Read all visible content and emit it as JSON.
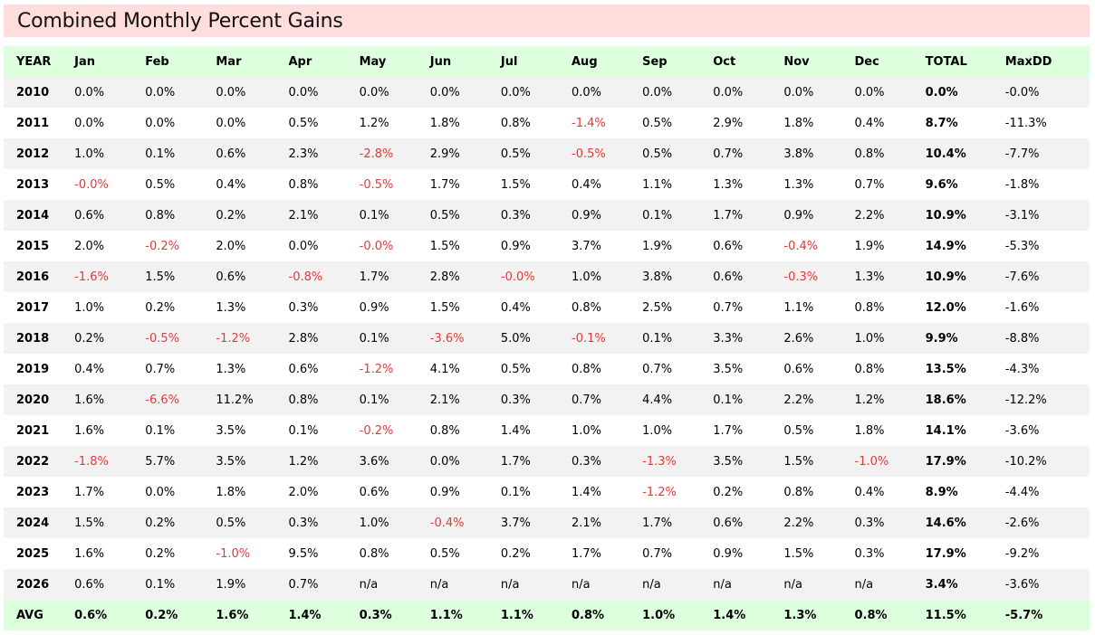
{
  "title": "Combined Monthly Percent Gains",
  "colors": {
    "title_bg": "#ffdddd",
    "header_bg": "#ddffdd",
    "stripe_bg": "#f2f2f2",
    "negative": "#e03a3a"
  },
  "headers": [
    "YEAR",
    "Jan",
    "Feb",
    "Mar",
    "Apr",
    "May",
    "Jun",
    "Jul",
    "Aug",
    "Sep",
    "Oct",
    "Nov",
    "Dec",
    "TOTAL",
    "MaxDD"
  ],
  "rows": [
    [
      "2010",
      "0.0%",
      "0.0%",
      "0.0%",
      "0.0%",
      "0.0%",
      "0.0%",
      "0.0%",
      "0.0%",
      "0.0%",
      "0.0%",
      "0.0%",
      "0.0%",
      "0.0%",
      "-0.0%"
    ],
    [
      "2011",
      "0.0%",
      "0.0%",
      "0.0%",
      "0.5%",
      "1.2%",
      "1.8%",
      "0.8%",
      "-1.4%",
      "0.5%",
      "2.9%",
      "1.8%",
      "0.4%",
      "8.7%",
      "-11.3%"
    ],
    [
      "2012",
      "1.0%",
      "0.1%",
      "0.6%",
      "2.3%",
      "-2.8%",
      "2.9%",
      "0.5%",
      "-0.5%",
      "0.5%",
      "0.7%",
      "3.8%",
      "0.8%",
      "10.4%",
      "-7.7%"
    ],
    [
      "2013",
      "-0.0%",
      "0.5%",
      "0.4%",
      "0.8%",
      "-0.5%",
      "1.7%",
      "1.5%",
      "0.4%",
      "1.1%",
      "1.3%",
      "1.3%",
      "0.7%",
      "9.6%",
      "-1.8%"
    ],
    [
      "2014",
      "0.6%",
      "0.8%",
      "0.2%",
      "2.1%",
      "0.1%",
      "0.5%",
      "0.3%",
      "0.9%",
      "0.1%",
      "1.7%",
      "0.9%",
      "2.2%",
      "10.9%",
      "-3.1%"
    ],
    [
      "2015",
      "2.0%",
      "-0.2%",
      "2.0%",
      "0.0%",
      "-0.0%",
      "1.5%",
      "0.9%",
      "3.7%",
      "1.9%",
      "0.6%",
      "-0.4%",
      "1.9%",
      "14.9%",
      "-5.3%"
    ],
    [
      "2016",
      "-1.6%",
      "1.5%",
      "0.6%",
      "-0.8%",
      "1.7%",
      "2.8%",
      "-0.0%",
      "1.0%",
      "3.8%",
      "0.6%",
      "-0.3%",
      "1.3%",
      "10.9%",
      "-7.6%"
    ],
    [
      "2017",
      "1.0%",
      "0.2%",
      "1.3%",
      "0.3%",
      "0.9%",
      "1.5%",
      "0.4%",
      "0.8%",
      "2.5%",
      "0.7%",
      "1.1%",
      "0.8%",
      "12.0%",
      "-1.6%"
    ],
    [
      "2018",
      "0.2%",
      "-0.5%",
      "-1.2%",
      "2.8%",
      "0.1%",
      "-3.6%",
      "5.0%",
      "-0.1%",
      "0.1%",
      "3.3%",
      "2.6%",
      "1.0%",
      "9.9%",
      "-8.8%"
    ],
    [
      "2019",
      "0.4%",
      "0.7%",
      "1.3%",
      "0.6%",
      "-1.2%",
      "4.1%",
      "0.5%",
      "0.8%",
      "0.7%",
      "3.5%",
      "0.6%",
      "0.8%",
      "13.5%",
      "-4.3%"
    ],
    [
      "2020",
      "1.6%",
      "-6.6%",
      "11.2%",
      "0.8%",
      "0.1%",
      "2.1%",
      "0.3%",
      "0.7%",
      "4.4%",
      "0.1%",
      "2.2%",
      "1.2%",
      "18.6%",
      "-12.2%"
    ],
    [
      "2021",
      "1.6%",
      "0.1%",
      "3.5%",
      "0.1%",
      "-0.2%",
      "0.8%",
      "1.4%",
      "1.0%",
      "1.0%",
      "1.7%",
      "0.5%",
      "1.8%",
      "14.1%",
      "-3.6%"
    ],
    [
      "2022",
      "-1.8%",
      "5.7%",
      "3.5%",
      "1.2%",
      "3.6%",
      "0.0%",
      "1.7%",
      "0.3%",
      "-1.3%",
      "3.5%",
      "1.5%",
      "-1.0%",
      "17.9%",
      "-10.2%"
    ],
    [
      "2023",
      "1.7%",
      "0.0%",
      "1.8%",
      "2.0%",
      "0.6%",
      "0.9%",
      "0.1%",
      "1.4%",
      "-1.2%",
      "0.2%",
      "0.8%",
      "0.4%",
      "8.9%",
      "-4.4%"
    ],
    [
      "2024",
      "1.5%",
      "0.2%",
      "0.5%",
      "0.3%",
      "1.0%",
      "-0.4%",
      "3.7%",
      "2.1%",
      "1.7%",
      "0.6%",
      "2.2%",
      "0.3%",
      "14.6%",
      "-2.6%"
    ],
    [
      "2025",
      "1.6%",
      "0.2%",
      "-1.0%",
      "9.5%",
      "0.8%",
      "0.5%",
      "0.2%",
      "1.7%",
      "0.7%",
      "0.9%",
      "1.5%",
      "0.3%",
      "17.9%",
      "-9.2%"
    ],
    [
      "2026",
      "0.6%",
      "0.1%",
      "1.9%",
      "0.7%",
      "n/a",
      "n/a",
      "n/a",
      "n/a",
      "n/a",
      "n/a",
      "n/a",
      "n/a",
      "3.4%",
      "-3.6%"
    ]
  ],
  "avg": [
    "AVG",
    "0.6%",
    "0.2%",
    "1.6%",
    "1.4%",
    "0.3%",
    "1.1%",
    "1.1%",
    "0.8%",
    "1.0%",
    "1.4%",
    "1.3%",
    "0.8%",
    "11.5%",
    "-5.7%"
  ]
}
